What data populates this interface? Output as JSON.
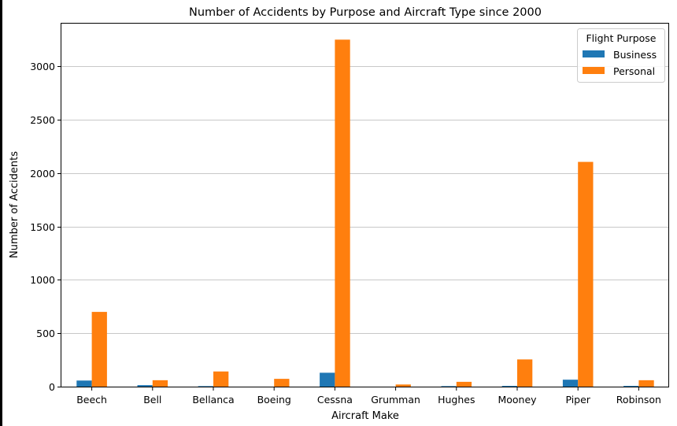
{
  "chart_data": {
    "type": "bar",
    "title": "Number of Accidents by Purpose and Aircraft Type since 2000",
    "xlabel": "Aircraft Make",
    "ylabel": "Number of Accidents",
    "categories": [
      "Beech",
      "Bell",
      "Bellanca",
      "Boeing",
      "Cessna",
      "Grumman",
      "Hughes",
      "Mooney",
      "Piper",
      "Robinson"
    ],
    "series": [
      {
        "name": "Business",
        "color": "#1f77b4",
        "values": [
          57,
          14,
          5,
          0,
          130,
          0,
          5,
          7,
          65,
          7
        ]
      },
      {
        "name": "Personal",
        "color": "#ff7f0e",
        "values": [
          700,
          60,
          142,
          73,
          3250,
          20,
          45,
          255,
          2105,
          60
        ]
      }
    ],
    "ylim": [
      0,
      3400
    ],
    "yticks": [
      0,
      500,
      1000,
      1500,
      2000,
      2500,
      3000
    ],
    "grid": "horizontal",
    "legend": {
      "title": "Flight Purpose",
      "placement": "top-right"
    }
  }
}
